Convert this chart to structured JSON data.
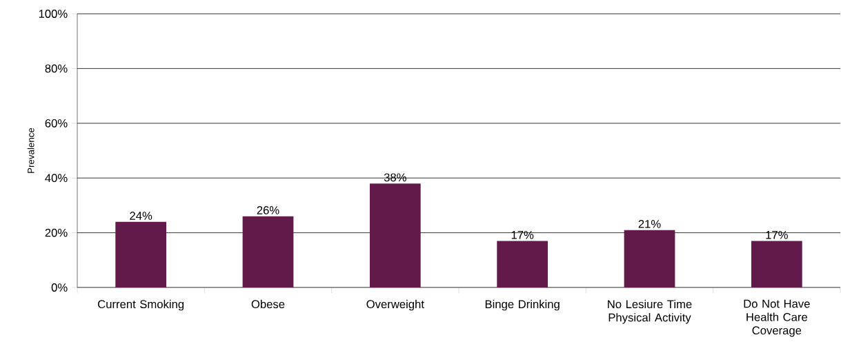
{
  "chart_data": {
    "type": "bar",
    "ylabel": "Prevalence",
    "categories": [
      "Current Smoking",
      "Obese",
      "Overweight",
      "Binge Drinking",
      "No Lesiure Time Physical Activity",
      "Do Not Have Health Care Coverage"
    ],
    "values": [
      24,
      26,
      38,
      17,
      21,
      17
    ],
    "value_labels": [
      "24%",
      "26%",
      "38%",
      "17%",
      "21%",
      "17%"
    ],
    "color": "#621a4a",
    "ylim": [
      0,
      100
    ],
    "yticks": [
      {
        "value": 0,
        "label": "0%"
      },
      {
        "value": 20,
        "label": "20%"
      },
      {
        "value": 40,
        "label": "40%"
      },
      {
        "value": 60,
        "label": "60%"
      },
      {
        "value": 80,
        "label": "80%"
      },
      {
        "value": 100,
        "label": "100%"
      }
    ],
    "grid": "y"
  }
}
